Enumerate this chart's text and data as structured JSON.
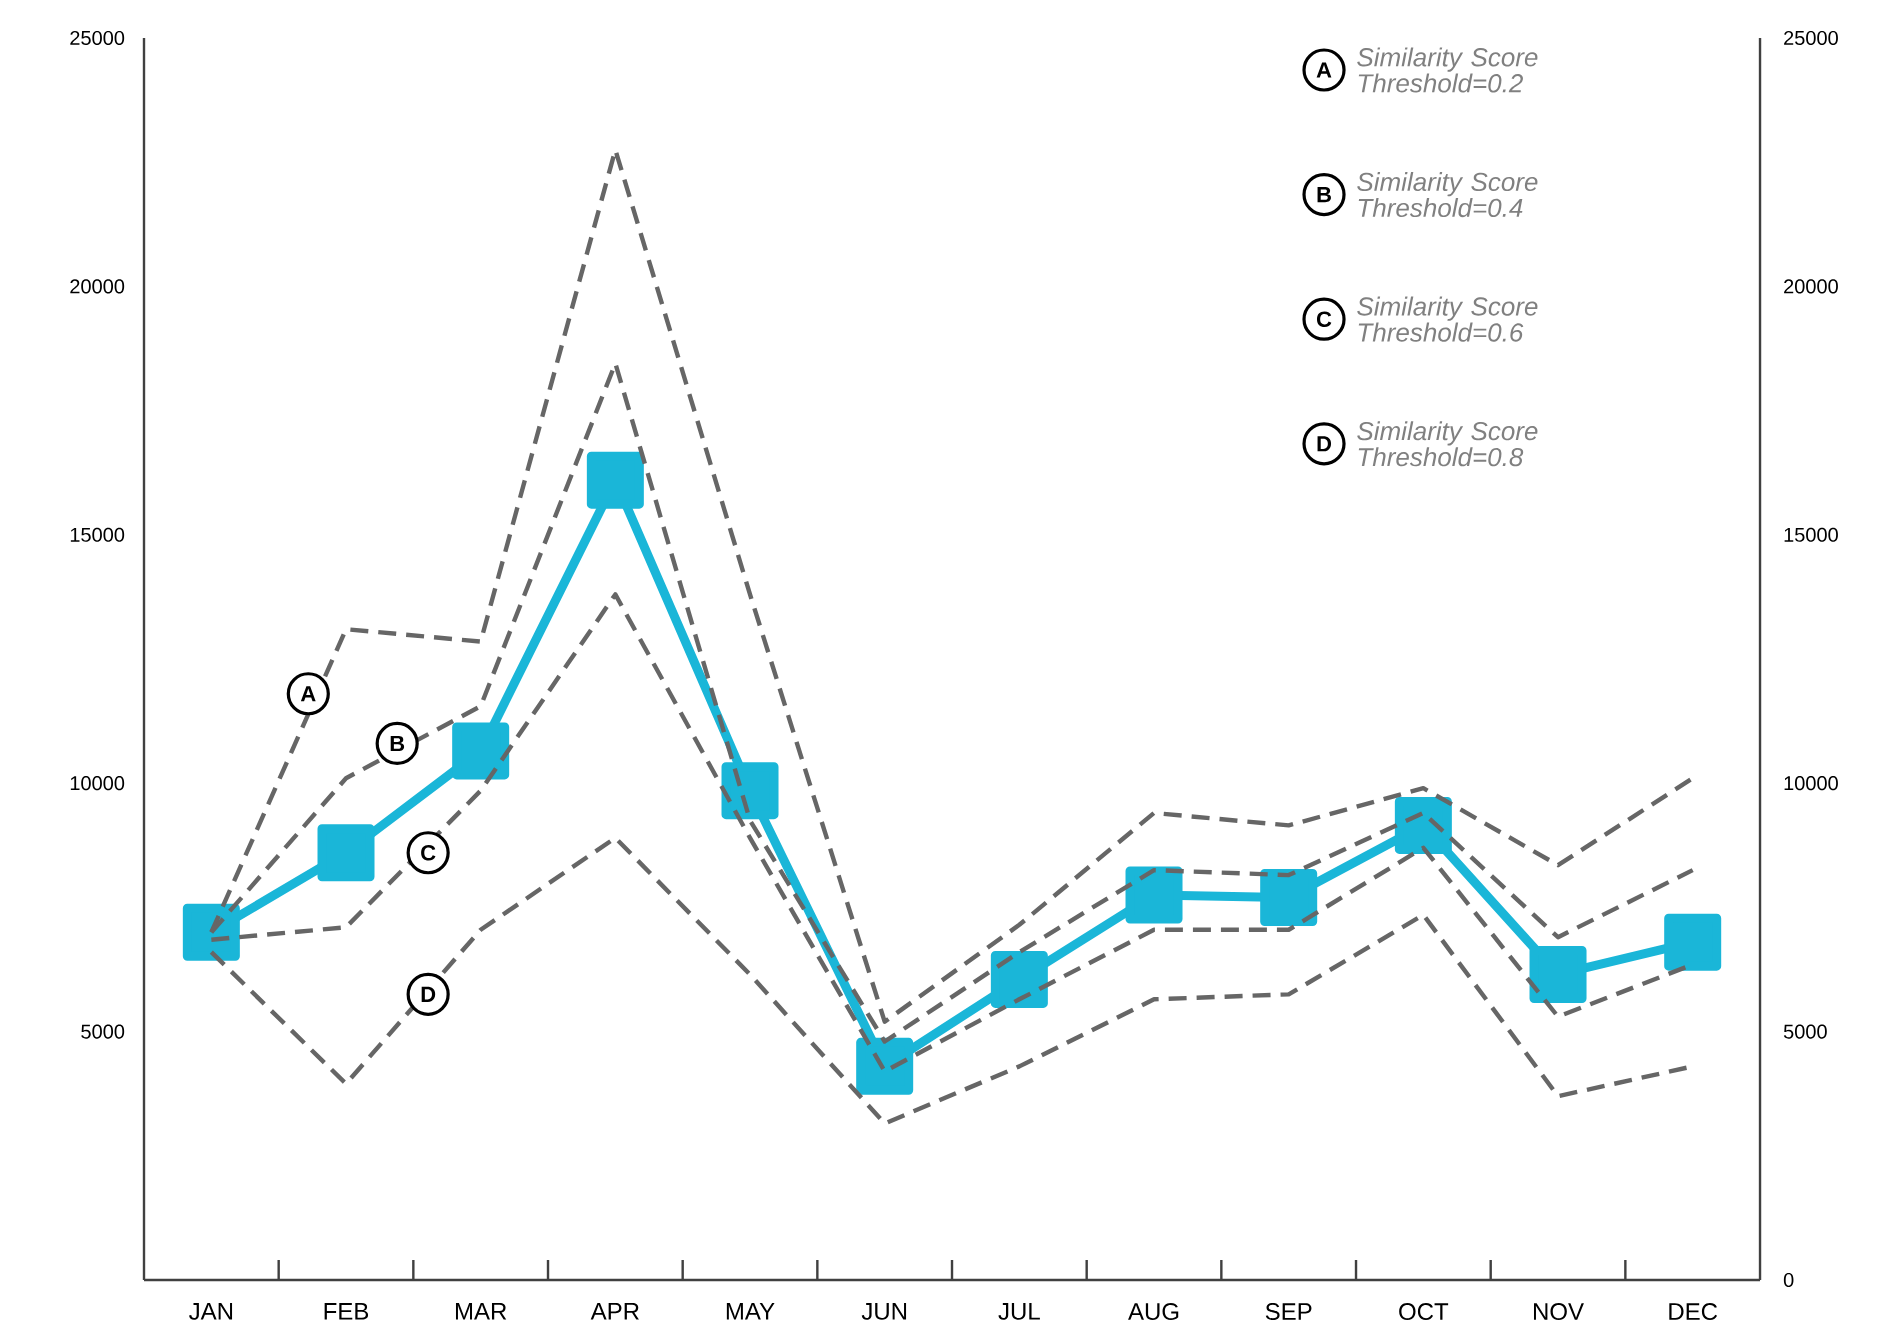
{
  "chart_data": {
    "type": "line",
    "categories": [
      "JAN",
      "FEB",
      "MAR",
      "APR",
      "MAY",
      "JUN",
      "JUL",
      "AUG",
      "SEP",
      "OCT",
      "NOV",
      "DEC"
    ],
    "series": [
      {
        "color": "#1ab6d8",
        "marker": "square",
        "line_style": "solid",
        "values": [
          7000,
          8600,
          10650,
          16100,
          9850,
          4300,
          6050,
          7750,
          7700,
          9150,
          6150,
          6800
        ]
      },
      {
        "color": "#666666",
        "marker": "none",
        "line_style": "dashed",
        "values": [
          7000,
          13100,
          12850,
          22750,
          13800,
          5200,
          7150,
          9400,
          9150,
          9900,
          8350,
          10100
        ]
      },
      {
        "color": "#666666",
        "marker": "none",
        "line_style": "dashed",
        "values": [
          7000,
          10100,
          11550,
          18450,
          9250,
          4800,
          6600,
          8250,
          8150,
          9400,
          6900,
          8250
        ]
      },
      {
        "color": "#666666",
        "marker": "none",
        "line_style": "dashed",
        "values": [
          6850,
          7100,
          9850,
          13800,
          8900,
          4200,
          5650,
          7050,
          7050,
          8700,
          5300,
          6350
        ]
      },
      {
        "color": "#666666",
        "marker": "none",
        "line_style": "dashed",
        "values": [
          6600,
          3950,
          7050,
          8900,
          6150,
          3150,
          4300,
          5650,
          5750,
          7350,
          3700,
          4300
        ]
      }
    ],
    "ylim": [
      0,
      25000
    ],
    "yticks": [
      5000,
      10000,
      15000,
      20000,
      25000
    ],
    "y2lim": [
      0,
      25000
    ],
    "y2ticks": [
      0,
      5000,
      10000,
      15000,
      20000,
      25000
    ],
    "annotations": [
      "Similarity Score Threshold=0.2",
      "Similarity Score Threshold=0.4",
      "Similarity Score Threshold=0.6",
      "Similarity Score Threshold=0.8",
      "A",
      "B",
      "C",
      "D",
      "A",
      "B",
      "C",
      "D"
    ]
  }
}
